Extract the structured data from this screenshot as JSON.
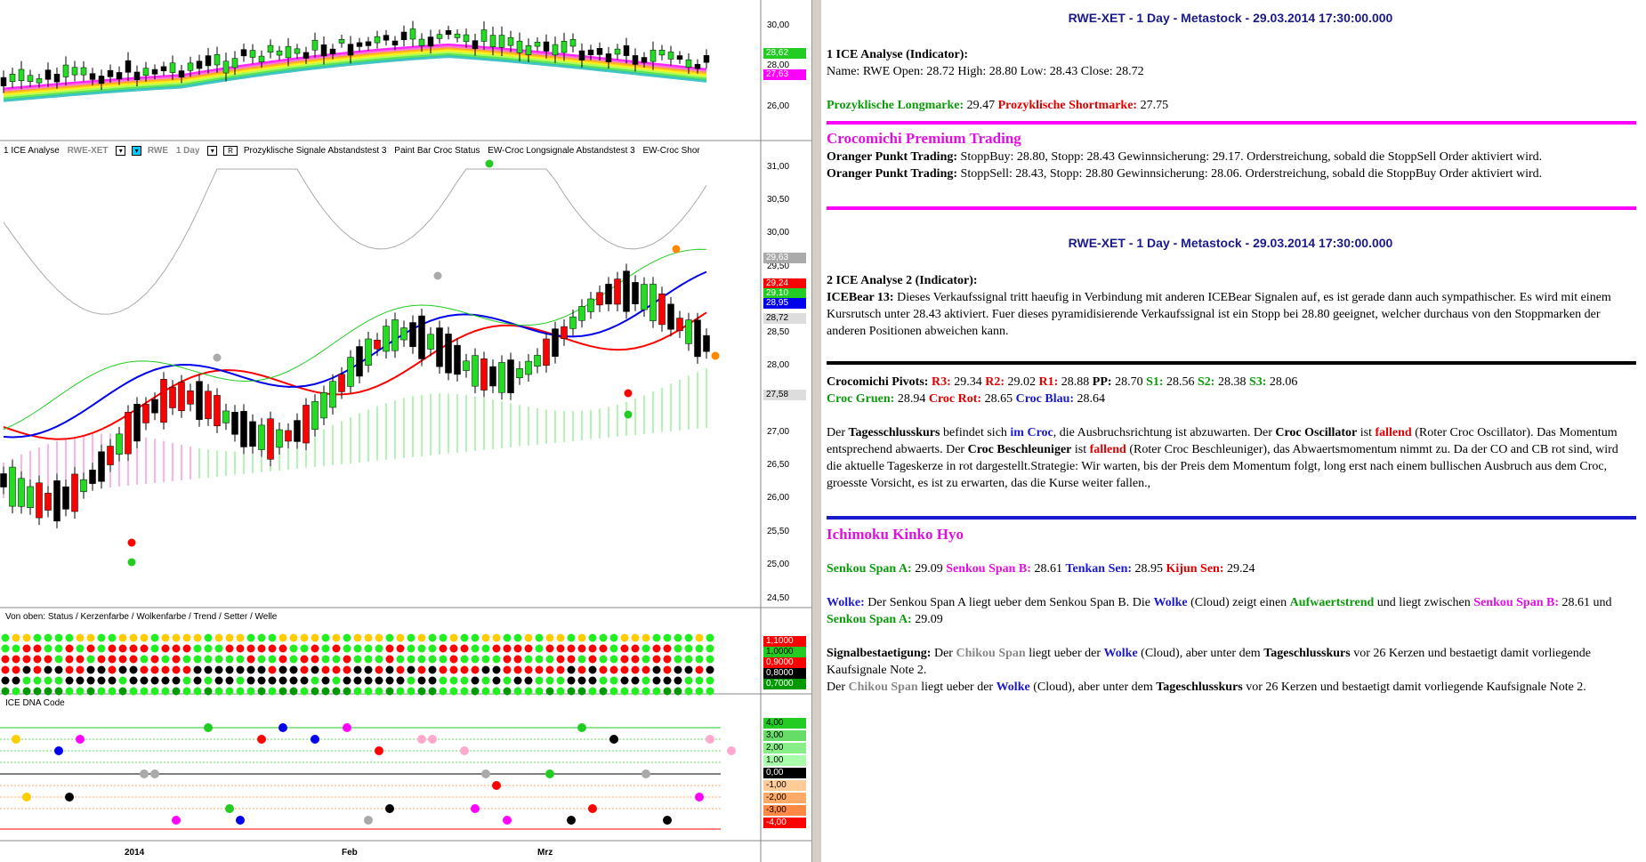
{
  "chart": {
    "price_axis": [
      "30,00",
      "28,00",
      "26,00"
    ],
    "price_tags": [
      {
        "label": "28,62",
        "bg": "#22cc22",
        "fg": "#fff"
      },
      {
        "label": "27,63",
        "bg": "#ff00ff",
        "fg": "#fff"
      }
    ],
    "ind_legend": {
      "name": "1 ICE Analyse",
      "symbol": "RWE-XET",
      "symbol2": "RWE",
      "interval": "1 Day",
      "r_box": "R",
      "items": [
        "Prozyklische Signale Abstandstest 3",
        "Paint Bar Croc Status",
        "EW-Croc Longsignale Abstandstest 3",
        "EW-Croc Shor"
      ]
    },
    "ice_axis": [
      "31,00",
      "30,50",
      "30,00",
      "29,50",
      "28,50",
      "28,00",
      "27,00",
      "26,50",
      "26,00",
      "25,50",
      "25,00",
      "24,50"
    ],
    "ice_tags": [
      {
        "label": "29,63",
        "bg": "#aaa",
        "fg": "#fff"
      },
      {
        "label": "29,24",
        "bg": "#ff0000",
        "fg": "#fff"
      },
      {
        "label": "29,10",
        "bg": "#22cc22",
        "fg": "#fff"
      },
      {
        "label": "28,95",
        "bg": "#0000ee",
        "fg": "#fff"
      },
      {
        "label": "28,72",
        "bg": "#ddd",
        "fg": "#000"
      },
      {
        "label": "27,58",
        "bg": "#ddd",
        "fg": "#000"
      }
    ],
    "status_label": "Von oben: Status / Kerzenfarbe / Wolkenfarbe / Trend / Setter / Welle",
    "status_tags": [
      {
        "label": "1,1000",
        "bg": "#ff0000",
        "fg": "#fff"
      },
      {
        "label": "1,0000",
        "bg": "#22cc22",
        "fg": "#000"
      },
      {
        "label": "0,9000",
        "bg": "#ff0000",
        "fg": "#fff"
      },
      {
        "label": "0,8000",
        "bg": "#000",
        "fg": "#fff"
      },
      {
        "label": "0,7000",
        "bg": "#009900",
        "fg": "#fff"
      }
    ],
    "dna_label": "ICE DNA Code",
    "dna_tags": [
      {
        "label": "4,00",
        "bg": "#22cc22",
        "fg": "#000"
      },
      {
        "label": "3,00",
        "bg": "#66dd66",
        "fg": "#000"
      },
      {
        "label": "2,00",
        "bg": "#88ee88",
        "fg": "#000"
      },
      {
        "label": "1,00",
        "bg": "#aaffaa",
        "fg": "#000"
      },
      {
        "label": "0,00",
        "bg": "#000",
        "fg": "#fff"
      },
      {
        "label": "-1,00",
        "bg": "#ffcc99",
        "fg": "#000"
      },
      {
        "label": "-2,00",
        "bg": "#ffaa66",
        "fg": "#000"
      },
      {
        "label": "-3,00",
        "bg": "#ff8844",
        "fg": "#000"
      },
      {
        "label": "-4,00",
        "bg": "#ff0000",
        "fg": "#fff"
      }
    ],
    "time_labels": [
      "2014",
      "Feb",
      "Mrz"
    ]
  },
  "report": {
    "header1": "RWE-XET - 1 Day - Metastock - 29.03.2014 17:30:00.000",
    "sec1_title": "1 ICE Analyse (Indicator):",
    "sec1_line": "Name: RWE Open: 28.72 High: 28.80 Low: 28.43 Close: 28.72",
    "long_label": "Prozyklische Longmarke:",
    "long_value": "29.47",
    "short_label": "Prozyklische Shortmarke:",
    "short_value": "27.75",
    "premium_title": "Crocomichi Premium Trading",
    "oranger_label": "Oranger Punkt Trading:",
    "oranger1": "StoppBuy: 28.80, Stopp: 28.43 Gewinnsicherung: 29.17. Orderstreichung, sobald die StoppSell Order aktiviert wird.",
    "oranger2": "StoppSell: 28.43, Stopp: 28.80 Gewinnsicherung: 28.06. Orderstreichung, sobald die StoppBuy Order aktiviert wird.",
    "header2": "RWE-XET - 1 Day - Metastock - 29.03.2014 17:30:00.000",
    "sec2_title": "2 ICE Analyse 2 (Indicator):",
    "icebear_label": "ICEBear 13:",
    "icebear_text": "Dieses Verkaufssignal tritt haeufig in Verbindung mit anderen ICEBear Signalen auf, es ist gerade dann auch sympathischer. Es wird mit einem Kursrutsch unter 28.43 aktiviert. Fuer dieses pyramidisierende Verkaufssignal ist ein Stopp bei 28.80 geeignet, welcher durchaus von den Stoppmarken der anderen Positionen abweichen kann.",
    "pivots_label": "Crocomichi Pivots:",
    "r3": "R3:",
    "r3v": "29.34",
    "r2": "R2:",
    "r2v": "29.02",
    "r1": "R1:",
    "r1v": "28.88",
    "pp": "PP:",
    "ppv": "28.70",
    "s1": "S1:",
    "s1v": "28.56",
    "s2": "S2:",
    "s2v": "28.38",
    "s3": "S3:",
    "s3v": "28.06",
    "croc_gruen": "Croc Gruen:",
    "croc_gruen_v": "28.94",
    "croc_rot": "Croc Rot:",
    "croc_rot_v": "28.65",
    "croc_blau": "Croc Blau:",
    "croc_blau_v": "28.64",
    "p1_a": "Der ",
    "p1_b": "Tagesschlusskurs",
    "p1_c": " befindet sich ",
    "p1_d": "im Croc",
    "p1_e": ", die Ausbruchsrichtung ist abzuwarten. Der ",
    "p1_f": "Croc Oscillator",
    "p1_g": " ist ",
    "p1_h": "fallend",
    "p1_i": " (Roter Croc Oscillator). Das Momentum entsprechend abwaerts. Der ",
    "p1_j": "Croc Beschleuniger",
    "p1_k": " ist ",
    "p1_l": "fallend",
    "p1_m": " (Roter Croc Beschleuniger), das Abwaertsmomentum nimmt zu. Da der CO and CB rot sind, wird die aktuelle Tageskerze in rot dargestellt.Strategie: Wir warten, bis der Preis dem Momentum folgt, long erst nach einem bullischen Ausbruch aus dem Croc, groesste Vorsicht, es ist zu erwarten, das die Kurse weiter fallen.,",
    "ichimoku_title": "Ichimoku Kinko Hyo",
    "ssa": "Senkou Span A:",
    "ssa_v": "29.09",
    "ssb": "Senkou Span B:",
    "ssb_v": "28.61",
    "tenkan": "Tenkan Sen:",
    "tenkan_v": "28.95",
    "kijun": "Kijun Sen:",
    "kijun_v": "29.24",
    "w_a": "Wolke:",
    "w_b": " Der Senkou Span A liegt ueber dem Senkou Span B. Die ",
    "w_c": "Wolke",
    "w_d": " (Cloud) zeigt einen ",
    "w_e": "Aufwaertstrend",
    "w_f": " und liegt zwischen ",
    "w_g": "Senkou Span B:",
    "w_h": " 28.61 und ",
    "w_i": "Senkou Span A:",
    "w_j": " 29.09",
    "sb_label": "Signalbestaetigung:",
    "sb_a": " Der ",
    "sb_chikou": "Chikou Span",
    "sb_b": " liegt ueber der ",
    "sb_wolke": "Wolke",
    "sb_c": " (Cloud), aber unter dem ",
    "sb_tsk": "Tageschlusskurs",
    "sb_d": " vor 26 Kerzen und bestaetigt damit vorliegende Kaufsignale Note 2.",
    "sb2_a": "Der ",
    "sb2_d": " vor 26 Kerzen und bestaetigt damit vorliegende Kaufsignale Note 2."
  }
}
